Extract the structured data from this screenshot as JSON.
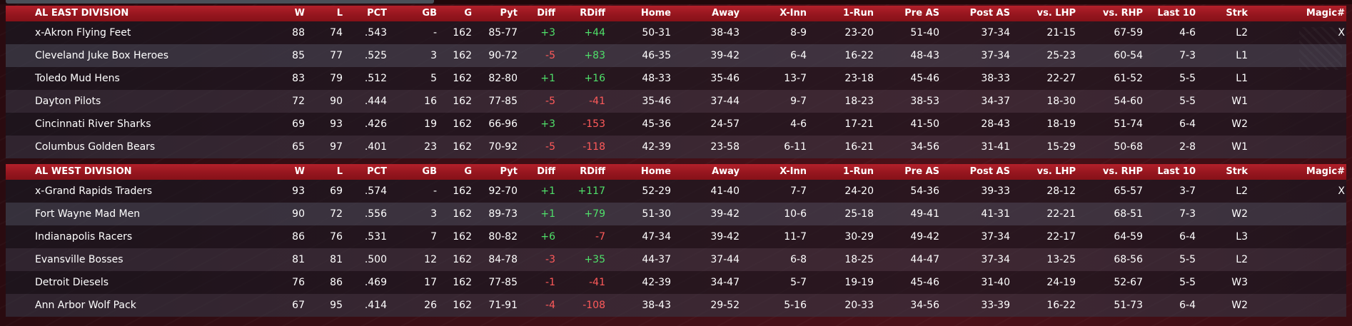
{
  "columns": [
    "W",
    "L",
    "PCT",
    "GB",
    "G",
    "Pyt",
    "Diff",
    "RDiff",
    "Home",
    "Away",
    "X-Inn",
    "1-Run",
    "Pre AS",
    "Post AS",
    "vs. LHP",
    "vs. RHP",
    "Last 10",
    "Strk",
    "Magic#"
  ],
  "divisions": [
    {
      "name": "AL EAST DIVISION",
      "teams": [
        {
          "team": "x-Akron  Flying Feet",
          "w": "88",
          "l": "74",
          "pct": ".543",
          "gb": "-",
          "g": "162",
          "pyt": "85-77",
          "diff": "+3",
          "rdiff": "+44",
          "home": "50-31",
          "away": "38-43",
          "xinn": "8-9",
          "onerun": "23-20",
          "preas": "51-40",
          "postas": "37-34",
          "vslhp": "21-15",
          "vsrhp": "67-59",
          "last10": "4-6",
          "strk": "L2",
          "magic": "X"
        },
        {
          "team": "Cleveland Juke Box Heroes",
          "w": "85",
          "l": "77",
          "pct": ".525",
          "gb": "3",
          "g": "162",
          "pyt": "90-72",
          "diff": "-5",
          "rdiff": "+83",
          "home": "46-35",
          "away": "39-42",
          "xinn": "6-4",
          "onerun": "16-22",
          "preas": "48-43",
          "postas": "37-34",
          "vslhp": "25-23",
          "vsrhp": "60-54",
          "last10": "7-3",
          "strk": "L1",
          "magic": ""
        },
        {
          "team": "Toledo  Mud Hens",
          "w": "83",
          "l": "79",
          "pct": ".512",
          "gb": "5",
          "g": "162",
          "pyt": "82-80",
          "diff": "+1",
          "rdiff": "+16",
          "home": "48-33",
          "away": "35-46",
          "xinn": "13-7",
          "onerun": "23-18",
          "preas": "45-46",
          "postas": "38-33",
          "vslhp": "22-27",
          "vsrhp": "61-52",
          "last10": "5-5",
          "strk": "L1",
          "magic": ""
        },
        {
          "team": "Dayton Pilots",
          "w": "72",
          "l": "90",
          "pct": ".444",
          "gb": "16",
          "g": "162",
          "pyt": "77-85",
          "diff": "-5",
          "rdiff": "-41",
          "home": "35-46",
          "away": "37-44",
          "xinn": "9-7",
          "onerun": "18-23",
          "preas": "38-53",
          "postas": "34-37",
          "vslhp": "18-30",
          "vsrhp": "54-60",
          "last10": "5-5",
          "strk": "W1",
          "magic": ""
        },
        {
          "team": "Cincinnati River Sharks",
          "w": "69",
          "l": "93",
          "pct": ".426",
          "gb": "19",
          "g": "162",
          "pyt": "66-96",
          "diff": "+3",
          "rdiff": "-153",
          "home": "45-36",
          "away": "24-57",
          "xinn": "4-6",
          "onerun": "17-21",
          "preas": "41-50",
          "postas": "28-43",
          "vslhp": "18-19",
          "vsrhp": "51-74",
          "last10": "6-4",
          "strk": "W2",
          "magic": ""
        },
        {
          "team": "Columbus Golden Bears",
          "w": "65",
          "l": "97",
          "pct": ".401",
          "gb": "23",
          "g": "162",
          "pyt": "70-92",
          "diff": "-5",
          "rdiff": "-118",
          "home": "42-39",
          "away": "23-58",
          "xinn": "6-11",
          "onerun": "16-21",
          "preas": "34-56",
          "postas": "31-41",
          "vslhp": "15-29",
          "vsrhp": "50-68",
          "last10": "2-8",
          "strk": "W1",
          "magic": ""
        }
      ]
    },
    {
      "name": "AL WEST DIVISION",
      "teams": [
        {
          "team": "x-Grand Rapids Traders",
          "w": "93",
          "l": "69",
          "pct": ".574",
          "gb": "-",
          "g": "162",
          "pyt": "92-70",
          "diff": "+1",
          "rdiff": "+117",
          "home": "52-29",
          "away": "41-40",
          "xinn": "7-7",
          "onerun": "24-20",
          "preas": "54-36",
          "postas": "39-33",
          "vslhp": "28-12",
          "vsrhp": "65-57",
          "last10": "3-7",
          "strk": "L2",
          "magic": "X"
        },
        {
          "team": "Fort Wayne Mad Men",
          "w": "90",
          "l": "72",
          "pct": ".556",
          "gb": "3",
          "g": "162",
          "pyt": "89-73",
          "diff": "+1",
          "rdiff": "+79",
          "home": "51-30",
          "away": "39-42",
          "xinn": "10-6",
          "onerun": "25-18",
          "preas": "49-41",
          "postas": "41-31",
          "vslhp": "22-21",
          "vsrhp": "68-51",
          "last10": "7-3",
          "strk": "W2",
          "magic": ""
        },
        {
          "team": "Indianapolis Racers",
          "w": "86",
          "l": "76",
          "pct": ".531",
          "gb": "7",
          "g": "162",
          "pyt": "80-82",
          "diff": "+6",
          "rdiff": "-7",
          "home": "47-34",
          "away": "39-42",
          "xinn": "11-7",
          "onerun": "30-29",
          "preas": "49-42",
          "postas": "37-34",
          "vslhp": "22-17",
          "vsrhp": "64-59",
          "last10": "6-4",
          "strk": "L3",
          "magic": ""
        },
        {
          "team": "Evansville Bosses",
          "w": "81",
          "l": "81",
          "pct": ".500",
          "gb": "12",
          "g": "162",
          "pyt": "84-78",
          "diff": "-3",
          "rdiff": "+35",
          "home": "44-37",
          "away": "37-44",
          "xinn": "6-8",
          "onerun": "18-25",
          "preas": "44-47",
          "postas": "37-34",
          "vslhp": "13-25",
          "vsrhp": "68-56",
          "last10": "5-5",
          "strk": "L2",
          "magic": ""
        },
        {
          "team": "Detroit Diesels",
          "w": "76",
          "l": "86",
          "pct": ".469",
          "gb": "17",
          "g": "162",
          "pyt": "77-85",
          "diff": "-1",
          "rdiff": "-41",
          "home": "42-39",
          "away": "34-47",
          "xinn": "5-7",
          "onerun": "19-19",
          "preas": "45-46",
          "postas": "31-40",
          "vslhp": "24-19",
          "vsrhp": "52-67",
          "last10": "5-5",
          "strk": "W3",
          "magic": ""
        },
        {
          "team": "Ann Arbor Wolf Pack",
          "w": "67",
          "l": "95",
          "pct": ".414",
          "gb": "26",
          "g": "162",
          "pyt": "71-91",
          "diff": "-4",
          "rdiff": "-108",
          "home": "38-43",
          "away": "29-52",
          "xinn": "5-16",
          "onerun": "20-33",
          "preas": "34-56",
          "postas": "33-39",
          "vslhp": "16-22",
          "vsrhp": "51-73",
          "last10": "6-4",
          "strk": "W2",
          "magic": ""
        }
      ]
    }
  ]
}
